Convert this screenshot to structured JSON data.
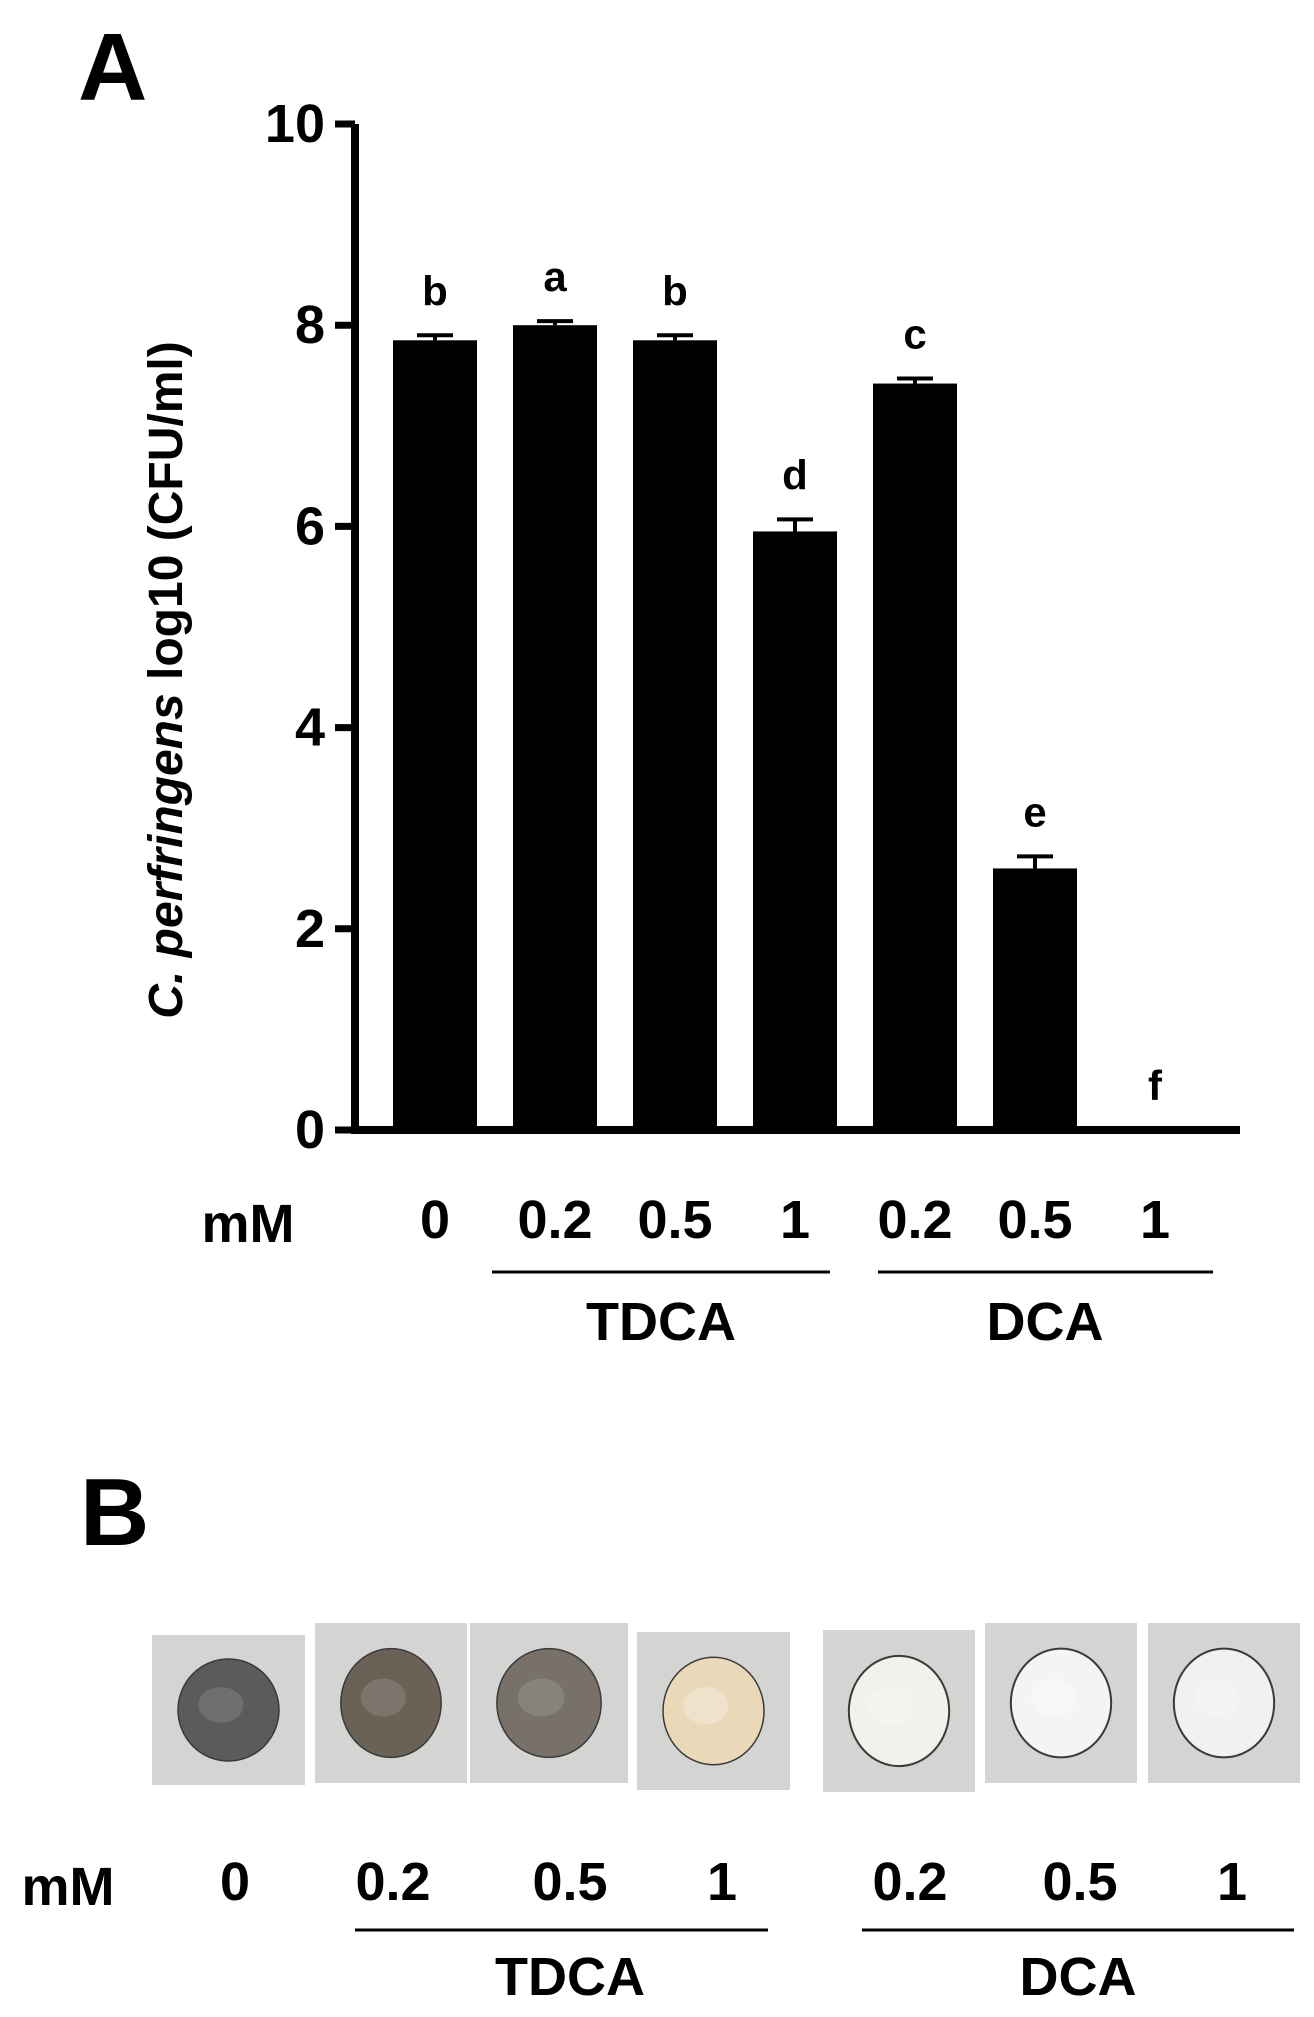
{
  "panel_a": {
    "letter": "A"
  },
  "panel_b": {
    "letter": "B"
  },
  "chart_data": {
    "type": "bar",
    "ylabel_italic": "C. perfringens",
    "ylabel_rest": " log10 (CFU/ml)",
    "ylim": [
      0,
      10
    ],
    "yticks": [
      "0",
      "2",
      "4",
      "6",
      "8",
      "10"
    ],
    "x_unit_label": "mM",
    "categories": [
      "0",
      "0.2",
      "0.5",
      "1",
      "0.2",
      "0.5",
      "1"
    ],
    "values": [
      7.85,
      8.0,
      7.85,
      5.95,
      7.42,
      2.6,
      0
    ],
    "errors": [
      0.05,
      0.04,
      0.05,
      0.12,
      0.05,
      0.12,
      0
    ],
    "significance_letters": [
      "b",
      "a",
      "b",
      "d",
      "c",
      "e",
      "f"
    ],
    "groups": [
      {
        "name": "TDCA",
        "category_indices": [
          1,
          2,
          3
        ]
      },
      {
        "name": "DCA",
        "category_indices": [
          4,
          5,
          6
        ]
      }
    ],
    "bar_color": "#000000",
    "grid": false
  },
  "plates": {
    "unit_label": "mM",
    "items": [
      {
        "label": "0",
        "color": "#5b5b59"
      },
      {
        "label": "0.2",
        "color": "#6a6257"
      },
      {
        "label": "0.5",
        "color": "#77716a"
      },
      {
        "label": "1",
        "color": "#e9d9b8"
      },
      {
        "label": "0.2",
        "color": "#f2f1ec"
      },
      {
        "label": "0.5",
        "color": "#f4f4f4"
      },
      {
        "label": "1",
        "color": "#f1f1f1"
      }
    ],
    "groups": [
      {
        "name": "TDCA"
      },
      {
        "name": "DCA"
      }
    ]
  }
}
